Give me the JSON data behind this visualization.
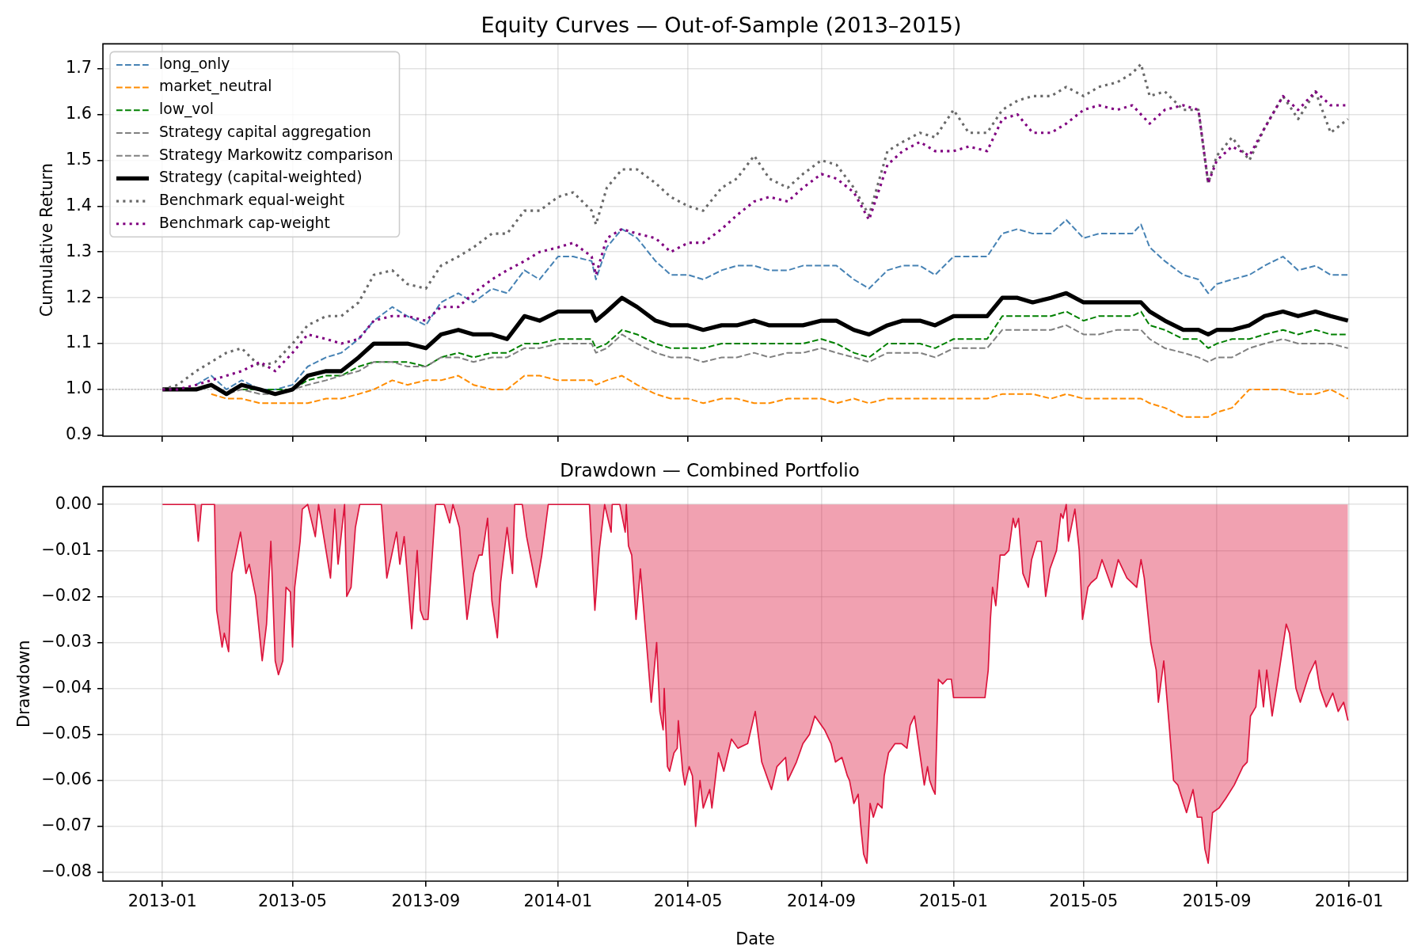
{
  "chart_data": [
    {
      "type": "line",
      "title": "Equity Curves — Out-of-Sample (2013–2015)",
      "ylabel": "Cumulative Return",
      "x": [
        "2013-01-01",
        "2013-01-15",
        "2013-02-01",
        "2013-02-15",
        "2013-03-01",
        "2013-03-15",
        "2013-04-01",
        "2013-04-15",
        "2013-05-01",
        "2013-05-15",
        "2013-06-01",
        "2013-06-15",
        "2013-07-01",
        "2013-07-15",
        "2013-08-01",
        "2013-08-15",
        "2013-09-01",
        "2013-09-15",
        "2013-10-01",
        "2013-10-15",
        "2013-11-01",
        "2013-11-15",
        "2013-12-01",
        "2013-12-15",
        "2014-01-01",
        "2014-01-15",
        "2014-02-01",
        "2014-02-05",
        "2014-02-15",
        "2014-03-01",
        "2014-03-15",
        "2014-04-01",
        "2014-04-15",
        "2014-05-01",
        "2014-05-15",
        "2014-06-01",
        "2014-06-15",
        "2014-07-01",
        "2014-07-15",
        "2014-08-01",
        "2014-08-15",
        "2014-09-01",
        "2014-09-15",
        "2014-10-01",
        "2014-10-15",
        "2014-11-01",
        "2014-11-15",
        "2014-12-01",
        "2014-12-15",
        "2015-01-01",
        "2015-01-15",
        "2015-02-01",
        "2015-02-15",
        "2015-03-01",
        "2015-03-15",
        "2015-04-01",
        "2015-04-15",
        "2015-05-01",
        "2015-05-15",
        "2015-06-01",
        "2015-06-15",
        "2015-06-23",
        "2015-07-01",
        "2015-07-15",
        "2015-08-01",
        "2015-08-15",
        "2015-08-24",
        "2015-09-01",
        "2015-09-15",
        "2015-10-01",
        "2015-10-15",
        "2015-11-01",
        "2015-11-15",
        "2015-12-01",
        "2015-12-15",
        "2015-12-31"
      ],
      "series": [
        {
          "name": "long_only",
          "color": "#4682b4",
          "line_style": "dashed",
          "values": [
            null,
            null,
            1.01,
            1.03,
            1.0,
            1.02,
            1.0,
            1.0,
            1.01,
            1.05,
            1.07,
            1.08,
            1.11,
            1.15,
            1.18,
            1.16,
            1.14,
            1.19,
            1.21,
            1.19,
            1.22,
            1.21,
            1.26,
            1.24,
            1.29,
            1.29,
            1.28,
            1.24,
            1.31,
            1.35,
            1.33,
            1.28,
            1.25,
            1.25,
            1.24,
            1.26,
            1.27,
            1.27,
            1.26,
            1.26,
            1.27,
            1.27,
            1.27,
            1.24,
            1.22,
            1.26,
            1.27,
            1.27,
            1.25,
            1.29,
            1.29,
            1.29,
            1.34,
            1.35,
            1.34,
            1.34,
            1.37,
            1.33,
            1.34,
            1.34,
            1.34,
            1.36,
            1.31,
            1.28,
            1.25,
            1.24,
            1.21,
            1.23,
            1.24,
            1.25,
            1.27,
            1.29,
            1.26,
            1.27,
            1.25,
            1.25
          ]
        },
        {
          "name": "market_neutral",
          "color": "#ff8c00",
          "line_style": "dashed",
          "values": [
            null,
            null,
            null,
            0.99,
            0.98,
            0.98,
            0.97,
            0.97,
            0.97,
            0.97,
            0.98,
            0.98,
            0.99,
            1.0,
            1.02,
            1.01,
            1.02,
            1.02,
            1.03,
            1.01,
            1.0,
            1.0,
            1.03,
            1.03,
            1.02,
            1.02,
            1.02,
            1.01,
            1.02,
            1.03,
            1.01,
            0.99,
            0.98,
            0.98,
            0.97,
            0.98,
            0.98,
            0.97,
            0.97,
            0.98,
            0.98,
            0.98,
            0.97,
            0.98,
            0.97,
            0.98,
            0.98,
            0.98,
            0.98,
            0.98,
            0.98,
            0.98,
            0.99,
            0.99,
            0.99,
            0.98,
            0.99,
            0.98,
            0.98,
            0.98,
            0.98,
            0.98,
            0.97,
            0.96,
            0.94,
            0.94,
            0.94,
            0.95,
            0.96,
            1.0,
            1.0,
            1.0,
            0.99,
            0.99,
            1.0,
            0.98
          ]
        },
        {
          "name": "low_vol",
          "color": "#008000",
          "line_style": "dashed",
          "values": [
            null,
            null,
            null,
            null,
            null,
            1.0,
            1.0,
            1.0,
            1.0,
            1.02,
            1.03,
            1.03,
            1.05,
            1.06,
            1.06,
            1.06,
            1.05,
            1.07,
            1.08,
            1.07,
            1.08,
            1.08,
            1.1,
            1.1,
            1.11,
            1.11,
            1.11,
            1.09,
            1.1,
            1.13,
            1.12,
            1.1,
            1.09,
            1.09,
            1.09,
            1.1,
            1.1,
            1.1,
            1.1,
            1.1,
            1.1,
            1.11,
            1.1,
            1.08,
            1.07,
            1.1,
            1.1,
            1.1,
            1.09,
            1.11,
            1.11,
            1.11,
            1.16,
            1.16,
            1.16,
            1.16,
            1.17,
            1.15,
            1.16,
            1.16,
            1.16,
            1.17,
            1.14,
            1.13,
            1.11,
            1.11,
            1.09,
            1.1,
            1.11,
            1.11,
            1.12,
            1.13,
            1.12,
            1.13,
            1.12,
            1.12
          ]
        },
        {
          "name": "Strategy capital aggregation",
          "color": "#808080",
          "line_style": "dashed",
          "values": [
            1.0,
            1.0,
            1.0,
            1.01,
            0.99,
            1.0,
            0.99,
            0.99,
            1.0,
            1.01,
            1.02,
            1.03,
            1.04,
            1.06,
            1.06,
            1.05,
            1.05,
            1.07,
            1.07,
            1.06,
            1.07,
            1.07,
            1.09,
            1.09,
            1.1,
            1.1,
            1.1,
            1.08,
            1.09,
            1.12,
            1.1,
            1.08,
            1.07,
            1.07,
            1.06,
            1.07,
            1.07,
            1.08,
            1.07,
            1.08,
            1.08,
            1.09,
            1.08,
            1.07,
            1.06,
            1.08,
            1.08,
            1.08,
            1.07,
            1.09,
            1.09,
            1.09,
            1.13,
            1.13,
            1.13,
            1.13,
            1.14,
            1.12,
            1.12,
            1.13,
            1.13,
            1.13,
            1.11,
            1.09,
            1.08,
            1.07,
            1.06,
            1.07,
            1.07,
            1.09,
            1.1,
            1.11,
            1.1,
            1.1,
            1.1,
            1.09
          ]
        },
        {
          "name": "Strategy Markowitz comparison",
          "color": "#808080",
          "line_style": "dashed",
          "values": [
            null,
            null,
            null,
            null,
            null,
            null,
            null,
            null,
            null,
            null,
            null,
            null,
            null,
            null,
            null,
            null,
            null,
            null,
            null,
            null,
            null,
            null,
            null,
            null,
            null,
            null,
            null,
            null,
            null,
            null,
            null,
            null,
            null,
            null,
            null,
            null,
            null,
            null,
            null,
            null,
            null,
            null,
            null,
            null,
            null,
            null,
            null,
            null,
            null,
            null,
            null,
            null,
            null,
            null,
            null,
            null,
            null,
            null,
            null,
            null,
            null,
            null,
            null,
            null,
            null,
            null,
            null,
            null,
            null,
            null,
            null,
            null,
            null,
            null,
            null,
            null
          ]
        },
        {
          "name": "Strategy (capital-weighted)",
          "color": "#000000",
          "line_style": "solid",
          "values": [
            1.0,
            1.0,
            1.0,
            1.01,
            0.99,
            1.01,
            1.0,
            0.99,
            1.0,
            1.03,
            1.04,
            1.04,
            1.07,
            1.1,
            1.1,
            1.1,
            1.09,
            1.12,
            1.13,
            1.12,
            1.12,
            1.11,
            1.16,
            1.15,
            1.17,
            1.17,
            1.17,
            1.15,
            1.17,
            1.2,
            1.18,
            1.15,
            1.14,
            1.14,
            1.13,
            1.14,
            1.14,
            1.15,
            1.14,
            1.14,
            1.14,
            1.15,
            1.15,
            1.13,
            1.12,
            1.14,
            1.15,
            1.15,
            1.14,
            1.16,
            1.16,
            1.16,
            1.2,
            1.2,
            1.19,
            1.2,
            1.21,
            1.19,
            1.19,
            1.19,
            1.19,
            1.19,
            1.17,
            1.15,
            1.13,
            1.13,
            1.12,
            1.13,
            1.13,
            1.14,
            1.16,
            1.17,
            1.16,
            1.17,
            1.16,
            1.15
          ]
        },
        {
          "name": "Benchmark equal-weight",
          "color": "#696969",
          "line_style": "dotted",
          "values": [
            1.0,
            1.01,
            1.04,
            1.06,
            1.08,
            1.09,
            1.05,
            1.06,
            1.1,
            1.14,
            1.16,
            1.16,
            1.19,
            1.25,
            1.26,
            1.23,
            1.22,
            1.27,
            1.29,
            1.31,
            1.34,
            1.34,
            1.39,
            1.39,
            1.42,
            1.43,
            1.39,
            1.36,
            1.44,
            1.48,
            1.48,
            1.45,
            1.42,
            1.4,
            1.39,
            1.44,
            1.46,
            1.51,
            1.46,
            1.44,
            1.47,
            1.5,
            1.49,
            1.44,
            1.38,
            1.52,
            1.54,
            1.56,
            1.55,
            1.61,
            1.56,
            1.56,
            1.61,
            1.63,
            1.64,
            1.64,
            1.66,
            1.64,
            1.66,
            1.67,
            1.69,
            1.71,
            1.64,
            1.65,
            1.61,
            1.61,
            1.45,
            1.51,
            1.55,
            1.5,
            1.57,
            1.64,
            1.59,
            1.65,
            1.56,
            1.59
          ]
        },
        {
          "name": "Benchmark cap-weight",
          "color": "#800080",
          "line_style": "dotted",
          "values": [
            1.0,
            1.0,
            1.01,
            1.02,
            1.03,
            1.04,
            1.06,
            1.04,
            1.08,
            1.12,
            1.11,
            1.1,
            1.11,
            1.15,
            1.16,
            1.16,
            1.15,
            1.18,
            1.18,
            1.21,
            1.24,
            1.26,
            1.28,
            1.3,
            1.31,
            1.32,
            1.29,
            1.25,
            1.33,
            1.35,
            1.34,
            1.33,
            1.3,
            1.32,
            1.32,
            1.35,
            1.38,
            1.41,
            1.42,
            1.41,
            1.44,
            1.47,
            1.46,
            1.43,
            1.37,
            1.49,
            1.52,
            1.54,
            1.52,
            1.52,
            1.53,
            1.52,
            1.59,
            1.6,
            1.56,
            1.56,
            1.58,
            1.61,
            1.62,
            1.61,
            1.62,
            1.6,
            1.58,
            1.61,
            1.62,
            1.61,
            1.45,
            1.5,
            1.53,
            1.51,
            1.57,
            1.64,
            1.61,
            1.65,
            1.62,
            1.62
          ]
        }
      ],
      "xlim": [
        "2012-11-07",
        "2016-02-24"
      ],
      "xticks": [
        "2013-01",
        "2013-05",
        "2013-09",
        "2014-01",
        "2014-05",
        "2014-09",
        "2015-01",
        "2015-05",
        "2015-09",
        "2016-01"
      ],
      "ylim": [
        0.898,
        1.754
      ],
      "yticks": [
        0.9,
        {
          "value": 1.0,
          "label": "1.0"
        },
        1.1,
        1.2,
        1.3,
        1.4,
        1.5,
        1.6,
        1.7
      ],
      "tick_labels": "y",
      "grid": true,
      "legend": "top left",
      "ref_lines": [
        {
          "axis": "y",
          "value": 1.0,
          "color": "#b0b0b0",
          "line_style": "dotted"
        }
      ]
    },
    {
      "type": "area",
      "title": "Drawdown — Combined Portfolio",
      "xlabel": "Date",
      "ylabel": "Drawdown",
      "color": "#dc143c",
      "x": [
        "2013-01-01",
        "2013-01-31",
        "2013-02-03",
        "2013-02-06",
        "2013-02-18",
        "2013-02-20",
        "2013-02-25",
        "2013-02-27",
        "2013-03-03",
        "2013-03-06",
        "2013-03-14",
        "2013-03-19",
        "2013-03-22",
        "2013-03-28",
        "2013-04-03",
        "2013-04-07",
        "2013-04-11",
        "2013-04-15",
        "2013-04-18",
        "2013-04-22",
        "2013-04-25",
        "2013-04-29",
        "2013-05-01",
        "2013-05-03",
        "2013-05-08",
        "2013-05-10",
        "2013-05-15",
        "2013-05-22",
        "2013-05-25",
        "2013-06-05",
        "2013-06-09",
        "2013-06-12",
        "2013-06-18",
        "2013-06-20",
        "2013-06-24",
        "2013-06-28",
        "2013-07-02",
        "2013-07-22",
        "2013-07-27",
        "2013-08-05",
        "2013-08-08",
        "2013-08-12",
        "2013-08-19",
        "2013-08-24",
        "2013-08-27",
        "2013-08-30",
        "2013-09-03",
        "2013-09-10",
        "2013-09-18",
        "2013-09-23",
        "2013-09-26",
        "2013-10-02",
        "2013-10-09",
        "2013-10-15",
        "2013-10-20",
        "2013-10-23",
        "2013-10-28",
        "2013-11-01",
        "2013-11-06",
        "2013-11-09",
        "2013-11-15",
        "2013-11-20",
        "2013-11-22",
        "2013-11-29",
        "2013-12-03",
        "2013-12-12",
        "2013-12-17",
        "2013-12-23",
        "2014-01-30",
        "2014-02-04",
        "2014-02-08",
        "2014-02-13",
        "2014-02-19",
        "2014-02-20",
        "2014-02-27",
        "2014-03-04",
        "2014-03-05",
        "2014-03-07",
        "2014-03-10",
        "2014-03-14",
        "2014-03-18",
        "2014-03-25",
        "2014-03-28",
        "2014-04-02",
        "2014-04-05",
        "2014-04-08",
        "2014-04-09",
        "2014-04-12",
        "2014-04-14",
        "2014-04-18",
        "2014-04-21",
        "2014-04-22",
        "2014-04-26",
        "2014-04-28",
        "2014-05-02",
        "2014-05-05",
        "2014-05-08",
        "2014-05-12",
        "2014-05-15",
        "2014-05-21",
        "2014-05-23",
        "2014-05-29",
        "2014-06-03",
        "2014-06-10",
        "2014-06-16",
        "2014-06-25",
        "2014-07-02",
        "2014-07-08",
        "2014-07-17",
        "2014-07-22",
        "2014-07-30",
        "2014-08-01",
        "2014-08-09",
        "2014-08-15",
        "2014-08-21",
        "2014-08-26",
        "2014-08-29",
        "2014-09-04",
        "2014-09-10",
        "2014-09-14",
        "2014-09-20",
        "2014-09-25",
        "2014-09-27",
        "2014-10-01",
        "2014-10-05",
        "2014-10-07",
        "2014-10-10",
        "2014-10-13",
        "2014-10-16",
        "2014-10-19",
        "2014-10-23",
        "2014-10-27",
        "2014-10-29",
        "2014-11-02",
        "2014-11-08",
        "2014-11-14",
        "2014-11-19",
        "2014-11-22",
        "2014-11-26",
        "2014-12-02",
        "2014-12-05",
        "2014-12-08",
        "2014-12-10",
        "2014-12-13",
        "2014-12-15",
        "2014-12-18",
        "2014-12-22",
        "2014-12-26",
        "2014-12-30",
        "2015-01-01",
        "2015-01-30",
        "2015-02-02",
        "2015-02-04",
        "2015-02-06",
        "2015-02-09",
        "2015-02-13",
        "2015-02-17",
        "2015-02-21",
        "2015-02-25",
        "2015-02-27",
        "2015-03-02",
        "2015-03-06",
        "2015-03-11",
        "2015-03-14",
        "2015-03-19",
        "2015-03-23",
        "2015-03-27",
        "2015-03-31",
        "2015-04-06",
        "2015-04-10",
        "2015-04-12",
        "2015-04-15",
        "2015-04-17",
        "2015-04-23",
        "2015-04-27",
        "2015-04-30",
        "2015-05-05",
        "2015-05-08",
        "2015-05-13",
        "2015-05-18",
        "2015-05-27",
        "2015-06-02",
        "2015-06-10",
        "2015-06-19",
        "2015-06-23",
        "2015-06-26",
        "2015-07-02",
        "2015-07-07",
        "2015-07-09",
        "2015-07-14",
        "2015-07-19",
        "2015-07-23",
        "2015-07-27",
        "2015-07-31",
        "2015-08-04",
        "2015-08-10",
        "2015-08-14",
        "2015-08-18",
        "2015-08-21",
        "2015-08-24",
        "2015-08-28",
        "2015-09-03",
        "2015-09-09",
        "2015-09-17",
        "2015-09-25",
        "2015-09-29",
        "2015-10-02",
        "2015-10-07",
        "2015-10-10",
        "2015-10-14",
        "2015-10-17",
        "2015-10-22",
        "2015-10-28",
        "2015-11-04",
        "2015-11-07",
        "2015-11-13",
        "2015-11-17",
        "2015-11-25",
        "2015-12-01",
        "2015-12-05",
        "2015-12-11",
        "2015-12-17",
        "2015-12-22",
        "2015-12-27",
        "2015-12-31"
      ],
      "values": [
        0,
        0,
        -0.008,
        0,
        0,
        -0.023,
        -0.031,
        -0.028,
        -0.032,
        -0.015,
        -0.006,
        -0.015,
        -0.013,
        -0.02,
        -0.034,
        -0.026,
        -0.008,
        -0.034,
        -0.037,
        -0.034,
        -0.018,
        -0.019,
        -0.031,
        -0.018,
        -0.008,
        -0.001,
        0,
        -0.007,
        0,
        -0.016,
        -0.001,
        -0.013,
        0,
        -0.02,
        -0.018,
        -0.005,
        0,
        0,
        -0.016,
        -0.006,
        -0.013,
        -0.007,
        -0.027,
        -0.01,
        -0.023,
        -0.025,
        -0.025,
        0,
        0,
        -0.004,
        0,
        -0.005,
        -0.025,
        -0.015,
        -0.011,
        -0.011,
        -0.003,
        -0.021,
        -0.029,
        -0.017,
        -0.005,
        -0.015,
        0,
        0,
        -0.007,
        -0.018,
        -0.011,
        0,
        0,
        -0.023,
        -0.01,
        0,
        -0.006,
        0,
        0,
        -0.006,
        0,
        -0.009,
        -0.011,
        -0.025,
        -0.014,
        -0.034,
        -0.043,
        -0.03,
        -0.045,
        -0.049,
        -0.04,
        -0.057,
        -0.058,
        -0.054,
        -0.053,
        -0.047,
        -0.058,
        -0.061,
        -0.057,
        -0.059,
        -0.07,
        -0.06,
        -0.066,
        -0.062,
        -0.066,
        -0.054,
        -0.058,
        -0.051,
        -0.053,
        -0.052,
        -0.045,
        -0.056,
        -0.062,
        -0.057,
        -0.055,
        -0.06,
        -0.056,
        -0.052,
        -0.05,
        -0.046,
        -0.047,
        -0.049,
        -0.052,
        -0.056,
        -0.055,
        -0.059,
        -0.06,
        -0.065,
        -0.063,
        -0.069,
        -0.076,
        -0.078,
        -0.065,
        -0.068,
        -0.065,
        -0.066,
        -0.059,
        -0.054,
        -0.052,
        -0.052,
        -0.053,
        -0.048,
        -0.046,
        -0.056,
        -0.061,
        -0.057,
        -0.06,
        -0.062,
        -0.063,
        -0.038,
        -0.039,
        -0.038,
        -0.038,
        -0.042,
        -0.042,
        -0.036,
        -0.025,
        -0.018,
        -0.022,
        -0.011,
        -0.011,
        -0.01,
        -0.003,
        -0.005,
        -0.003,
        -0.015,
        -0.018,
        -0.012,
        -0.008,
        -0.008,
        -0.02,
        -0.014,
        -0.01,
        -0.002,
        -0.003,
        0,
        -0.008,
        -0.001,
        -0.01,
        -0.025,
        -0.018,
        -0.017,
        -0.016,
        -0.012,
        -0.018,
        -0.012,
        -0.016,
        -0.018,
        -0.012,
        -0.016,
        -0.03,
        -0.036,
        -0.043,
        -0.034,
        -0.048,
        -0.06,
        -0.061,
        -0.064,
        -0.067,
        -0.062,
        -0.068,
        -0.068,
        -0.075,
        -0.078,
        -0.067,
        -0.066,
        -0.064,
        -0.061,
        -0.057,
        -0.056,
        -0.046,
        -0.044,
        -0.036,
        -0.044,
        -0.036,
        -0.046,
        -0.037,
        -0.026,
        -0.028,
        -0.04,
        -0.043,
        -0.037,
        -0.034,
        -0.04,
        -0.044,
        -0.041,
        -0.045,
        -0.043,
        -0.047
      ],
      "xlim": [
        "2012-11-07",
        "2016-02-24"
      ],
      "xticks": [
        "2013-01",
        "2013-05",
        "2013-09",
        "2014-01",
        "2014-05",
        "2014-09",
        "2015-01",
        "2015-05",
        "2015-09",
        "2016-01"
      ],
      "ylim": [
        -0.0819,
        0.0039
      ],
      "yticks": [
        {
          "value": -0.08,
          "label": "−0.08"
        },
        {
          "value": -0.07,
          "label": "−0.07"
        },
        {
          "value": -0.06,
          "label": "−0.06"
        },
        {
          "value": -0.05,
          "label": "−0.05"
        },
        {
          "value": -0.04,
          "label": "−0.04"
        },
        {
          "value": -0.03,
          "label": "−0.03"
        },
        {
          "value": -0.02,
          "label": "−0.02"
        },
        {
          "value": -0.01,
          "label": "−0.01"
        },
        {
          "value": 0,
          "label": "0.00"
        }
      ],
      "grid": true
    }
  ]
}
